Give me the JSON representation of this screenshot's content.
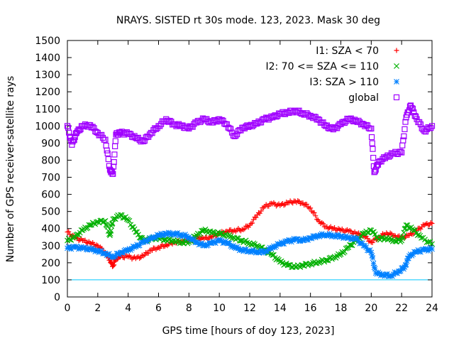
{
  "chart_data": {
    "type": "scatter",
    "title": "NRAYS. SISTED rt 30s mode. 123, 2023. Mask 30 deg",
    "xlabel": "GPS time [hours of doy 123, 2023]",
    "ylabel": "Number of GPS receiver-satellite rays",
    "xlim": [
      0,
      24
    ],
    "ylim": [
      0,
      1500
    ],
    "xticks": [
      0,
      2,
      4,
      6,
      8,
      10,
      12,
      14,
      16,
      18,
      20,
      22,
      24
    ],
    "yticks": [
      0,
      100,
      200,
      300,
      400,
      500,
      600,
      700,
      800,
      900,
      1000,
      1100,
      1200,
      1300,
      1400,
      1500
    ],
    "threshold_line": {
      "y": 100,
      "color": "#00c8ff"
    },
    "legend_position": "top-right",
    "series": [
      {
        "name": "I1: SZA < 70",
        "color": "#ff0000",
        "marker": "plus",
        "points": [
          [
            0,
            380
          ],
          [
            0.5,
            345
          ],
          [
            1,
            330
          ],
          [
            1.5,
            315
          ],
          [
            2,
            300
          ],
          [
            2.5,
            260
          ],
          [
            2.8,
            215
          ],
          [
            3,
            180
          ],
          [
            3.2,
            225
          ],
          [
            3.5,
            235
          ],
          [
            4,
            235
          ],
          [
            4.5,
            225
          ],
          [
            5,
            240
          ],
          [
            5.5,
            275
          ],
          [
            6,
            290
          ],
          [
            6.5,
            305
          ],
          [
            7,
            320
          ],
          [
            7.5,
            325
          ],
          [
            8,
            330
          ],
          [
            8.5,
            345
          ],
          [
            9,
            340
          ],
          [
            9.5,
            350
          ],
          [
            10,
            370
          ],
          [
            10.5,
            385
          ],
          [
            11,
            390
          ],
          [
            11.5,
            395
          ],
          [
            12,
            420
          ],
          [
            12.5,
            480
          ],
          [
            13,
            530
          ],
          [
            13.5,
            545
          ],
          [
            14,
            535
          ],
          [
            14.5,
            550
          ],
          [
            15,
            560
          ],
          [
            15.5,
            550
          ],
          [
            16,
            520
          ],
          [
            16.5,
            450
          ],
          [
            17,
            410
          ],
          [
            17.5,
            400
          ],
          [
            18,
            390
          ],
          [
            18.5,
            385
          ],
          [
            19,
            370
          ],
          [
            19.5,
            360
          ],
          [
            20,
            320
          ],
          [
            20.5,
            350
          ],
          [
            21,
            375
          ],
          [
            21.5,
            360
          ],
          [
            22,
            345
          ],
          [
            22.5,
            360
          ],
          [
            23,
            390
          ],
          [
            23.5,
            420
          ],
          [
            24,
            430
          ]
        ]
      },
      {
        "name": "I2: 70 <= SZA <= 110",
        "color": "#00b000",
        "marker": "cross",
        "points": [
          [
            0,
            330
          ],
          [
            0.5,
            350
          ],
          [
            1,
            390
          ],
          [
            1.5,
            420
          ],
          [
            2,
            440
          ],
          [
            2.5,
            445
          ],
          [
            2.8,
            360
          ],
          [
            3,
            455
          ],
          [
            3.5,
            480
          ],
          [
            4,
            450
          ],
          [
            4.5,
            380
          ],
          [
            5,
            330
          ],
          [
            5.5,
            340
          ],
          [
            6,
            345
          ],
          [
            6.5,
            335
          ],
          [
            7,
            330
          ],
          [
            7.5,
            320
          ],
          [
            8,
            320
          ],
          [
            8.5,
            360
          ],
          [
            9,
            390
          ],
          [
            9.5,
            375
          ],
          [
            10,
            370
          ],
          [
            10.5,
            360
          ],
          [
            11,
            345
          ],
          [
            11.5,
            330
          ],
          [
            12,
            315
          ],
          [
            12.5,
            300
          ],
          [
            13,
            275
          ],
          [
            13.5,
            245
          ],
          [
            14,
            205
          ],
          [
            14.5,
            185
          ],
          [
            15,
            175
          ],
          [
            15.5,
            185
          ],
          [
            16,
            195
          ],
          [
            16.5,
            205
          ],
          [
            17,
            215
          ],
          [
            17.5,
            230
          ],
          [
            18,
            250
          ],
          [
            18.5,
            290
          ],
          [
            19,
            330
          ],
          [
            19.5,
            370
          ],
          [
            20,
            390
          ],
          [
            20.5,
            340
          ],
          [
            21,
            345
          ],
          [
            21.5,
            330
          ],
          [
            22,
            330
          ],
          [
            22.3,
            420
          ],
          [
            22.8,
            390
          ],
          [
            23.3,
            345
          ],
          [
            24,
            310
          ]
        ]
      },
      {
        "name": "I3: SZA > 110",
        "color": "#0080ff",
        "marker": "star",
        "points": [
          [
            0,
            285
          ],
          [
            0.5,
            290
          ],
          [
            1,
            285
          ],
          [
            1.5,
            280
          ],
          [
            2,
            270
          ],
          [
            2.5,
            255
          ],
          [
            3,
            235
          ],
          [
            3.5,
            260
          ],
          [
            4,
            275
          ],
          [
            4.5,
            295
          ],
          [
            5,
            320
          ],
          [
            5.5,
            340
          ],
          [
            6,
            360
          ],
          [
            6.5,
            370
          ],
          [
            7,
            370
          ],
          [
            7.5,
            365
          ],
          [
            8,
            350
          ],
          [
            8.5,
            320
          ],
          [
            9,
            300
          ],
          [
            9.5,
            315
          ],
          [
            10,
            330
          ],
          [
            10.5,
            315
          ],
          [
            11,
            290
          ],
          [
            11.5,
            275
          ],
          [
            12,
            270
          ],
          [
            12.5,
            265
          ],
          [
            13,
            265
          ],
          [
            13.5,
            290
          ],
          [
            14,
            310
          ],
          [
            14.5,
            325
          ],
          [
            15,
            335
          ],
          [
            15.5,
            330
          ],
          [
            16,
            345
          ],
          [
            16.5,
            360
          ],
          [
            17,
            365
          ],
          [
            17.5,
            360
          ],
          [
            18,
            355
          ],
          [
            18.5,
            345
          ],
          [
            19,
            340
          ],
          [
            19.5,
            300
          ],
          [
            20,
            260
          ],
          [
            20.3,
            140
          ],
          [
            20.8,
            130
          ],
          [
            21.3,
            125
          ],
          [
            21.8,
            150
          ],
          [
            22.2,
            175
          ],
          [
            22.5,
            240
          ],
          [
            23,
            265
          ],
          [
            23.5,
            275
          ],
          [
            24,
            280
          ]
        ]
      },
      {
        "name": "global",
        "color": "#a000ff",
        "marker": "square",
        "points": [
          [
            0,
            1000
          ],
          [
            0.3,
            890
          ],
          [
            0.6,
            960
          ],
          [
            1,
            1000
          ],
          [
            1.5,
            1005
          ],
          [
            2,
            960
          ],
          [
            2.5,
            920
          ],
          [
            2.8,
            745
          ],
          [
            3,
            720
          ],
          [
            3.2,
            950
          ],
          [
            3.5,
            960
          ],
          [
            4,
            955
          ],
          [
            4.5,
            930
          ],
          [
            5,
            910
          ],
          [
            5.5,
            960
          ],
          [
            6,
            1000
          ],
          [
            6.5,
            1040
          ],
          [
            7,
            1010
          ],
          [
            7.5,
            1000
          ],
          [
            8,
            985
          ],
          [
            8.5,
            1020
          ],
          [
            9,
            1040
          ],
          [
            9.5,
            1020
          ],
          [
            10,
            1040
          ],
          [
            10.5,
            1010
          ],
          [
            11,
            940
          ],
          [
            11.5,
            990
          ],
          [
            12,
            1000
          ],
          [
            12.5,
            1015
          ],
          [
            13,
            1040
          ],
          [
            13.5,
            1050
          ],
          [
            14,
            1070
          ],
          [
            14.5,
            1080
          ],
          [
            15,
            1090
          ],
          [
            15.5,
            1075
          ],
          [
            16,
            1060
          ],
          [
            16.5,
            1040
          ],
          [
            17,
            1000
          ],
          [
            17.5,
            980
          ],
          [
            18,
            1010
          ],
          [
            18.5,
            1040
          ],
          [
            19,
            1030
          ],
          [
            19.5,
            1010
          ],
          [
            20,
            985
          ],
          [
            20.2,
            730
          ],
          [
            20.5,
            790
          ],
          [
            21,
            820
          ],
          [
            21.5,
            840
          ],
          [
            22,
            845
          ],
          [
            22.3,
            1050
          ],
          [
            22.6,
            1120
          ],
          [
            23,
            1040
          ],
          [
            23.5,
            970
          ],
          [
            24,
            1000
          ]
        ]
      }
    ]
  }
}
